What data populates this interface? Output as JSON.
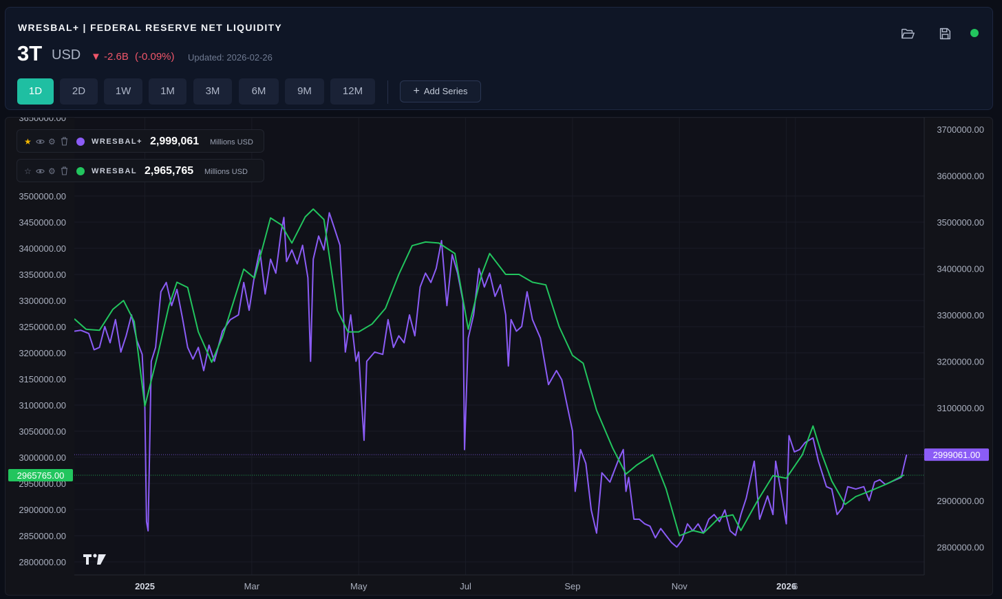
{
  "header": {
    "title": "WRESBAL+ | FEDERAL RESERVE NET LIQUIDITY",
    "value": "3T",
    "unit": "USD",
    "delta": "▼ -2.6B",
    "delta_pct": "(-0.09%)",
    "updated": "Updated: 2026-02-26",
    "status_color": "#22c55e",
    "timeframes": [
      "1D",
      "2D",
      "1W",
      "1M",
      "3M",
      "6M",
      "9M",
      "12M"
    ],
    "active_timeframe": "1D",
    "add_series_label": "Add Series"
  },
  "legend": [
    {
      "name": "WRESBAL+",
      "value": "2,999,061",
      "unit": "Millions USD",
      "color": "#8b5cf6",
      "starred": true
    },
    {
      "name": "WRESBAL",
      "value": "2,965,765",
      "unit": "Millions USD",
      "color": "#22c55e",
      "starred": false
    }
  ],
  "chart_data": {
    "type": "line",
    "title": "WRESBAL+ | FEDERAL RESERVE NET LIQUIDITY",
    "x_labels": [
      {
        "label": "2025",
        "month": 0.0,
        "bold": true
      },
      {
        "label": "Mar",
        "month": 2.0,
        "bold": false
      },
      {
        "label": "May",
        "month": 4.0,
        "bold": false
      },
      {
        "label": "Jul",
        "month": 6.0,
        "bold": false
      },
      {
        "label": "Sep",
        "month": 8.0,
        "bold": false
      },
      {
        "label": "Nov",
        "month": 10.0,
        "bold": false
      },
      {
        "label": "2026",
        "month": 12.0,
        "bold": true
      },
      {
        "label": "6",
        "month": 12.17,
        "bold": false
      }
    ],
    "x_range_months": [
      -1.32,
      14.58
    ],
    "left_axis": {
      "range": [
        2775000,
        3650000
      ],
      "ticks": [
        2800000,
        2850000,
        2900000,
        2950000,
        3000000,
        3050000,
        3100000,
        3150000,
        3200000,
        3250000,
        3300000,
        3350000,
        3400000,
        3450000,
        3500000,
        3650000
      ],
      "tick_labels": [
        "2800000.00",
        "2850000.00",
        "2900000.00",
        "2950000.00",
        "3000000.00",
        "3050000.00",
        "3100000.00",
        "3150000.00",
        "3200000.00",
        "3250000.00",
        "3300000.00",
        "3350000.00",
        "3400000.00",
        "3450000.00",
        "3500000.00",
        "3650000.00"
      ]
    },
    "right_axis": {
      "range": [
        2740000,
        3725000
      ],
      "ticks": [
        2800000,
        2900000,
        3000000,
        3100000,
        3200000,
        3300000,
        3400000,
        3500000,
        3600000,
        3700000
      ],
      "tick_labels": [
        "2800000.00",
        "2900000.00",
        "3000000.00",
        "3100000.00",
        "3200000.00",
        "3300000.00",
        "3400000.00",
        "3500000.00",
        "3600000.00",
        "3700000.00"
      ]
    },
    "price_tags": [
      {
        "label": "2999061.00",
        "value": 2999061,
        "axis": "right",
        "color": "#8b5cf6"
      },
      {
        "label": "2965765.00",
        "value": 2965765,
        "axis": "left",
        "color": "#22c55e"
      }
    ],
    "series": [
      {
        "name": "WRESBAL+",
        "color": "#8b5cf6",
        "axis": "right",
        "points": [
          [
            -1.32,
            3265000
          ],
          [
            -1.2,
            3267000
          ],
          [
            -1.05,
            3260000
          ],
          [
            -0.95,
            3225000
          ],
          [
            -0.85,
            3230000
          ],
          [
            -0.75,
            3275000
          ],
          [
            -0.65,
            3240000
          ],
          [
            -0.55,
            3290000
          ],
          [
            -0.45,
            3220000
          ],
          [
            -0.35,
            3255000
          ],
          [
            -0.25,
            3300000
          ],
          [
            -0.15,
            3245000
          ],
          [
            -0.05,
            3215000
          ],
          [
            0.0,
            3100000
          ],
          [
            0.03,
            2855000
          ],
          [
            0.06,
            2835000
          ],
          [
            0.12,
            3200000
          ],
          [
            0.2,
            3230000
          ],
          [
            0.3,
            3350000
          ],
          [
            0.4,
            3370000
          ],
          [
            0.5,
            3320000
          ],
          [
            0.6,
            3355000
          ],
          [
            0.7,
            3295000
          ],
          [
            0.8,
            3230000
          ],
          [
            0.9,
            3205000
          ],
          [
            1.0,
            3230000
          ],
          [
            1.1,
            3180000
          ],
          [
            1.2,
            3235000
          ],
          [
            1.3,
            3200000
          ],
          [
            1.45,
            3265000
          ],
          [
            1.6,
            3290000
          ],
          [
            1.75,
            3300000
          ],
          [
            1.85,
            3370000
          ],
          [
            1.95,
            3310000
          ],
          [
            2.05,
            3385000
          ],
          [
            2.15,
            3440000
          ],
          [
            2.25,
            3345000
          ],
          [
            2.35,
            3420000
          ],
          [
            2.45,
            3390000
          ],
          [
            2.55,
            3480000
          ],
          [
            2.6,
            3510000
          ],
          [
            2.65,
            3415000
          ],
          [
            2.75,
            3440000
          ],
          [
            2.85,
            3410000
          ],
          [
            2.95,
            3450000
          ],
          [
            3.05,
            3380000
          ],
          [
            3.1,
            3200000
          ],
          [
            3.15,
            3420000
          ],
          [
            3.25,
            3470000
          ],
          [
            3.35,
            3440000
          ],
          [
            3.45,
            3520000
          ],
          [
            3.55,
            3485000
          ],
          [
            3.65,
            3450000
          ],
          [
            3.75,
            3220000
          ],
          [
            3.85,
            3300000
          ],
          [
            3.95,
            3200000
          ],
          [
            4.0,
            3220000
          ],
          [
            4.05,
            3120000
          ],
          [
            4.1,
            3030000
          ],
          [
            4.15,
            3200000
          ],
          [
            4.3,
            3220000
          ],
          [
            4.45,
            3215000
          ],
          [
            4.55,
            3290000
          ],
          [
            4.65,
            3230000
          ],
          [
            4.75,
            3255000
          ],
          [
            4.85,
            3240000
          ],
          [
            4.95,
            3300000
          ],
          [
            5.05,
            3255000
          ],
          [
            5.15,
            3360000
          ],
          [
            5.25,
            3390000
          ],
          [
            5.35,
            3370000
          ],
          [
            5.45,
            3400000
          ],
          [
            5.55,
            3460000
          ],
          [
            5.65,
            3320000
          ],
          [
            5.75,
            3430000
          ],
          [
            5.85,
            3390000
          ],
          [
            5.95,
            3330000
          ],
          [
            5.98,
            3010000
          ],
          [
            6.05,
            3250000
          ],
          [
            6.15,
            3300000
          ],
          [
            6.25,
            3400000
          ],
          [
            6.35,
            3360000
          ],
          [
            6.45,
            3390000
          ],
          [
            6.55,
            3340000
          ],
          [
            6.65,
            3365000
          ],
          [
            6.75,
            3300000
          ],
          [
            6.8,
            3190000
          ],
          [
            6.85,
            3290000
          ],
          [
            6.95,
            3265000
          ],
          [
            7.05,
            3275000
          ],
          [
            7.15,
            3350000
          ],
          [
            7.25,
            3290000
          ],
          [
            7.4,
            3250000
          ],
          [
            7.55,
            3150000
          ],
          [
            7.7,
            3180000
          ],
          [
            7.8,
            3160000
          ],
          [
            7.9,
            3105000
          ],
          [
            8.0,
            3050000
          ],
          [
            8.05,
            2920000
          ],
          [
            8.15,
            3010000
          ],
          [
            8.25,
            2980000
          ],
          [
            8.35,
            2880000
          ],
          [
            8.45,
            2830000
          ],
          [
            8.55,
            2960000
          ],
          [
            8.7,
            2940000
          ],
          [
            8.85,
            2985000
          ],
          [
            8.95,
            3010000
          ],
          [
            9.0,
            2920000
          ],
          [
            9.05,
            2950000
          ],
          [
            9.15,
            2860000
          ],
          [
            9.25,
            2860000
          ],
          [
            9.35,
            2850000
          ],
          [
            9.45,
            2845000
          ],
          [
            9.55,
            2820000
          ],
          [
            9.65,
            2840000
          ],
          [
            9.75,
            2825000
          ],
          [
            9.85,
            2810000
          ],
          [
            9.95,
            2800000
          ],
          [
            10.05,
            2815000
          ],
          [
            10.15,
            2850000
          ],
          [
            10.25,
            2835000
          ],
          [
            10.35,
            2850000
          ],
          [
            10.45,
            2830000
          ],
          [
            10.55,
            2860000
          ],
          [
            10.65,
            2870000
          ],
          [
            10.75,
            2855000
          ],
          [
            10.85,
            2880000
          ],
          [
            10.95,
            2835000
          ],
          [
            11.05,
            2825000
          ],
          [
            11.15,
            2870000
          ],
          [
            11.25,
            2905000
          ],
          [
            11.4,
            2985000
          ],
          [
            11.5,
            2860000
          ],
          [
            11.65,
            2910000
          ],
          [
            11.75,
            2870000
          ],
          [
            11.8,
            2985000
          ],
          [
            11.9,
            2920000
          ],
          [
            12.0,
            2850000
          ],
          [
            12.05,
            3040000
          ],
          [
            12.15,
            3005000
          ],
          [
            12.25,
            3010000
          ],
          [
            12.35,
            3025000
          ],
          [
            12.5,
            3035000
          ],
          [
            12.6,
            2985000
          ],
          [
            12.75,
            2930000
          ],
          [
            12.85,
            2925000
          ],
          [
            12.95,
            2870000
          ],
          [
            13.05,
            2885000
          ],
          [
            13.15,
            2930000
          ],
          [
            13.3,
            2925000
          ],
          [
            13.45,
            2930000
          ],
          [
            13.55,
            2900000
          ],
          [
            13.65,
            2940000
          ],
          [
            13.75,
            2945000
          ],
          [
            13.85,
            2935000
          ],
          [
            13.95,
            2940000
          ],
          [
            14.05,
            2945000
          ],
          [
            14.15,
            2950000
          ],
          [
            14.2,
            2975000
          ],
          [
            14.25,
            2999061
          ]
        ]
      },
      {
        "name": "WRESBAL",
        "color": "#22c55e",
        "axis": "left",
        "points": [
          [
            -1.32,
            3265000
          ],
          [
            -1.1,
            3245000
          ],
          [
            -0.85,
            3243000
          ],
          [
            -0.6,
            3283000
          ],
          [
            -0.4,
            3300000
          ],
          [
            -0.2,
            3260000
          ],
          [
            0.0,
            3098000
          ],
          [
            0.25,
            3200000
          ],
          [
            0.45,
            3290000
          ],
          [
            0.6,
            3335000
          ],
          [
            0.8,
            3325000
          ],
          [
            1.0,
            3240000
          ],
          [
            1.25,
            3182000
          ],
          [
            1.45,
            3230000
          ],
          [
            1.65,
            3295000
          ],
          [
            1.85,
            3360000
          ],
          [
            2.05,
            3343000
          ],
          [
            2.35,
            3458000
          ],
          [
            2.55,
            3445000
          ],
          [
            2.75,
            3410000
          ],
          [
            3.0,
            3460000
          ],
          [
            3.15,
            3475000
          ],
          [
            3.35,
            3455000
          ],
          [
            3.6,
            3281000
          ],
          [
            3.8,
            3240000
          ],
          [
            4.0,
            3240000
          ],
          [
            4.25,
            3255000
          ],
          [
            4.5,
            3285000
          ],
          [
            4.75,
            3350000
          ],
          [
            5.0,
            3405000
          ],
          [
            5.25,
            3412000
          ],
          [
            5.5,
            3410000
          ],
          [
            5.8,
            3390000
          ],
          [
            6.05,
            3245000
          ],
          [
            6.3,
            3350000
          ],
          [
            6.45,
            3390000
          ],
          [
            6.75,
            3350000
          ],
          [
            7.0,
            3350000
          ],
          [
            7.25,
            3335000
          ],
          [
            7.5,
            3330000
          ],
          [
            7.75,
            3250000
          ],
          [
            8.0,
            3195000
          ],
          [
            8.2,
            3180000
          ],
          [
            8.45,
            3090000
          ],
          [
            8.75,
            3018000
          ],
          [
            9.0,
            2968000
          ],
          [
            9.2,
            2985000
          ],
          [
            9.5,
            3005000
          ],
          [
            9.75,
            2940000
          ],
          [
            10.0,
            2850000
          ],
          [
            10.25,
            2860000
          ],
          [
            10.45,
            2855000
          ],
          [
            10.75,
            2885000
          ],
          [
            11.0,
            2890000
          ],
          [
            11.15,
            2860000
          ],
          [
            11.45,
            2915000
          ],
          [
            11.75,
            2965000
          ],
          [
            12.0,
            2960000
          ],
          [
            12.3,
            3005000
          ],
          [
            12.5,
            3060000
          ],
          [
            12.65,
            3010000
          ],
          [
            12.85,
            2955000
          ],
          [
            13.1,
            2910000
          ],
          [
            13.3,
            2925000
          ],
          [
            13.6,
            2937000
          ],
          [
            13.9,
            2950000
          ],
          [
            14.2,
            2966000
          ]
        ]
      }
    ]
  }
}
